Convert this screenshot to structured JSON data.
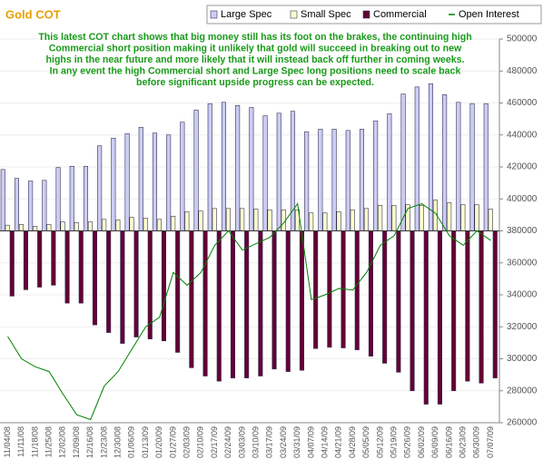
{
  "chart_data": {
    "type": "bar",
    "title": "Gold COT",
    "annotation": [
      "This latest COT chart shows that big money still has its foot on the brakes, the continuing high",
      "Commercial short position making it unlikely that gold will succeed in breaking out to new",
      "highs in the near future and more likely that it will instead back off further in coming weeks.",
      "In any event the high Commercial short and Large Spec long positions need to scale back",
      "before significant upside progress can be expected."
    ],
    "categories": [
      "11/04/08",
      "11/11/08",
      "11/18/08",
      "11/25/08",
      "12/02/08",
      "12/09/08",
      "12/16/08",
      "12/23/08",
      "12/30/08",
      "01/06/09",
      "01/13/09",
      "01/20/09",
      "01/27/09",
      "02/03/09",
      "02/10/09",
      "02/17/09",
      "02/24/09",
      "03/03/09",
      "03/10/09",
      "03/17/09",
      "03/24/09",
      "03/31/09",
      "04/07/09",
      "04/14/09",
      "04/21/09",
      "04/28/09",
      "05/05/09",
      "05/12/09",
      "05/19/09",
      "05/26/09",
      "06/02/09",
      "06/09/09",
      "06/16/09",
      "06/23/09",
      "06/30/09",
      "07/07/09"
    ],
    "ylim": [
      -300000,
      300000
    ],
    "y2lim": [
      260000,
      500000
    ],
    "y2ticks": [
      260000,
      280000,
      300000,
      320000,
      340000,
      360000,
      380000,
      400000,
      420000,
      440000,
      460000,
      480000,
      500000
    ],
    "grid": true,
    "legend": "top-right",
    "series": [
      {
        "name": "Large Spec",
        "color": "#ccccf4",
        "type": "bar",
        "values": [
          96000,
          82000,
          78000,
          79000,
          99000,
          101000,
          101000,
          133000,
          145000,
          152000,
          162000,
          153000,
          150000,
          170000,
          189000,
          199000,
          201000,
          196000,
          193000,
          180000,
          184000,
          187000,
          155000,
          159000,
          159000,
          157000,
          159000,
          172000,
          183000,
          214000,
          225000,
          230000,
          213000,
          201000,
          199000,
          199000
        ]
      },
      {
        "name": "Small Spec",
        "color": "#ffffcc",
        "type": "bar",
        "values": [
          9000,
          10000,
          7000,
          10000,
          14000,
          13000,
          14000,
          18000,
          17000,
          21000,
          20000,
          18000,
          23000,
          30000,
          31000,
          35000,
          35000,
          35000,
          34000,
          33000,
          33000,
          33000,
          28000,
          28000,
          30000,
          33000,
          35000,
          40000,
          40000,
          41000,
          40000,
          48000,
          44000,
          41000,
          41000,
          34000
        ]
      },
      {
        "name": "Commercial",
        "color": "#660033",
        "type": "bar",
        "values": [
          -102000,
          -92000,
          -88000,
          -85000,
          -113000,
          -113000,
          -147000,
          -159000,
          -176000,
          -166000,
          -169000,
          -172000,
          -190000,
          -214000,
          -227000,
          -235000,
          -230000,
          -230000,
          -227000,
          -216000,
          -220000,
          -218000,
          -184000,
          -182000,
          -183000,
          -186000,
          -196000,
          -207000,
          -221000,
          -250000,
          -271000,
          -271000,
          -250000,
          -235000,
          -238000,
          -230000
        ]
      },
      {
        "name": "Open Interest",
        "color": "#008000",
        "type": "line",
        "axis": "y2",
        "values": [
          314000,
          300000,
          295000,
          292000,
          278000,
          265000,
          262000,
          283000,
          292000,
          306000,
          320000,
          326000,
          354000,
          346000,
          354000,
          371000,
          380000,
          368000,
          372000,
          376000,
          385000,
          397000,
          337000,
          340000,
          344000,
          343000,
          354000,
          371000,
          377000,
          394000,
          397000,
          391000,
          377000,
          371000,
          380000,
          374000
        ]
      }
    ]
  }
}
